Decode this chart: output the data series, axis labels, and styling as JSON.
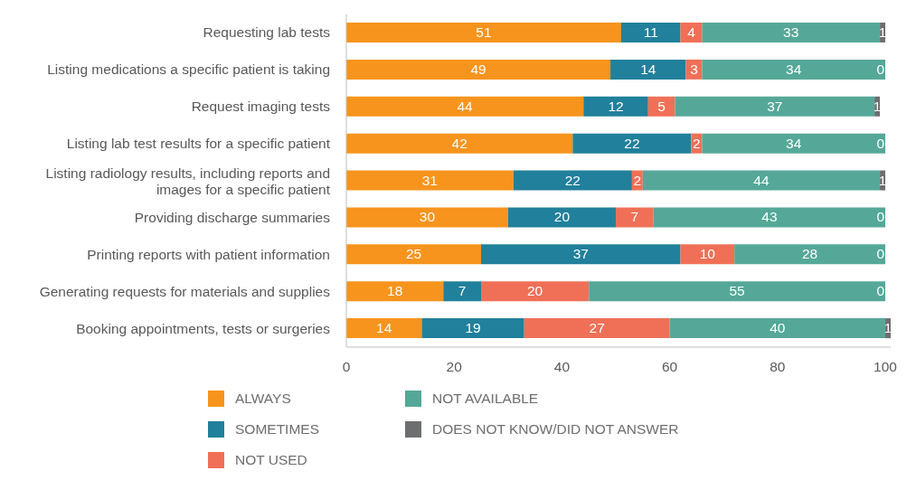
{
  "chart_data": {
    "type": "bar",
    "orientation": "horizontal",
    "stacked": true,
    "data_labels": true,
    "legend": "bottom",
    "grid": false,
    "categories": [
      "Requesting lab tests",
      "Listing medications a specific patient is taking",
      "Request imaging tests",
      "Listing lab test results for a specific patient",
      "Listing radiology results, including reports and images for a specific patient",
      "Providing discharge summaries",
      "Printing reports with patient information",
      "Generating requests for materials and supplies",
      "Booking appointments, tests or surgeries"
    ],
    "xlim": [
      0,
      101
    ],
    "xticks": [
      0,
      20,
      40,
      60,
      80,
      100
    ],
    "series": [
      {
        "name": "ALWAYS",
        "color": "#f7941d",
        "values": [
          51,
          49,
          44,
          42,
          31,
          30,
          25,
          18,
          14
        ]
      },
      {
        "name": "SOMETIMES",
        "color": "#21809b",
        "values": [
          11,
          14,
          12,
          22,
          22,
          20,
          37,
          7,
          19
        ]
      },
      {
        "name": "NOT USED",
        "color": "#f07057",
        "values": [
          4,
          3,
          5,
          2,
          2,
          7,
          10,
          20,
          27
        ]
      },
      {
        "name": "NOT AVAILABLE",
        "color": "#55a898",
        "values": [
          33,
          34,
          37,
          34,
          44,
          43,
          28,
          55,
          40
        ]
      },
      {
        "name": "DOES NOT KNOW/DID NOT ANSWER",
        "color": "#6d6e70",
        "values": [
          1,
          0,
          1,
          0,
          1,
          0,
          0,
          0,
          1
        ]
      }
    ]
  }
}
